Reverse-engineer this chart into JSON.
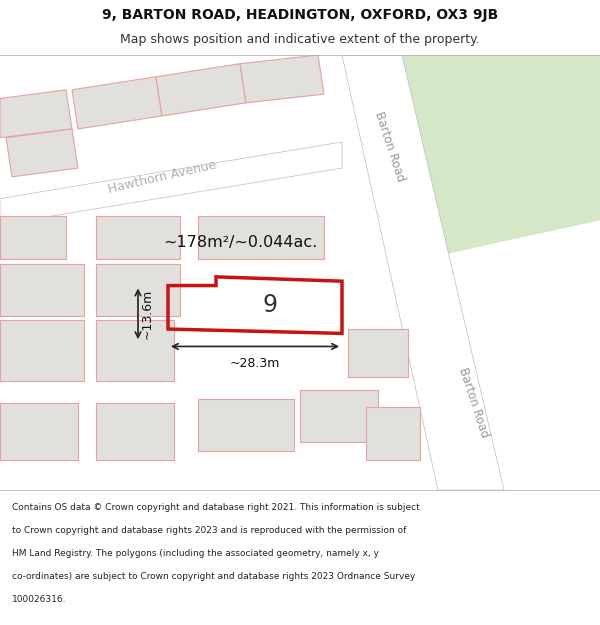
{
  "title_line1": "9, BARTON ROAD, HEADINGTON, OXFORD, OX3 9JB",
  "title_line2": "Map shows position and indicative extent of the property.",
  "area_text": "~178m²/~0.044ac.",
  "number_label": "9",
  "width_label": "~28.3m",
  "height_label": "~13.6m",
  "road_label_top": "Barton Road",
  "road_label_right": "Barton Road",
  "street_label": "Hawthorn Avenue",
  "footer_lines": [
    "Contains OS data © Crown copyright and database right 2021. This information is subject",
    "to Crown copyright and database rights 2023 and is reproduced with the permission of",
    "HM Land Registry. The polygons (including the associated geometry, namely x, y",
    "co-ordinates) are subject to Crown copyright and database rights 2023 Ordnance Survey",
    "100026316."
  ],
  "map_bg": "#edecea",
  "block_fill": "#e2e0dd",
  "red_color": "#cc1111",
  "green_area": "#d4e8c8",
  "pink_line": "#e8a0a0",
  "footer_bg": "#ffffff",
  "title_bg": "#ffffff"
}
